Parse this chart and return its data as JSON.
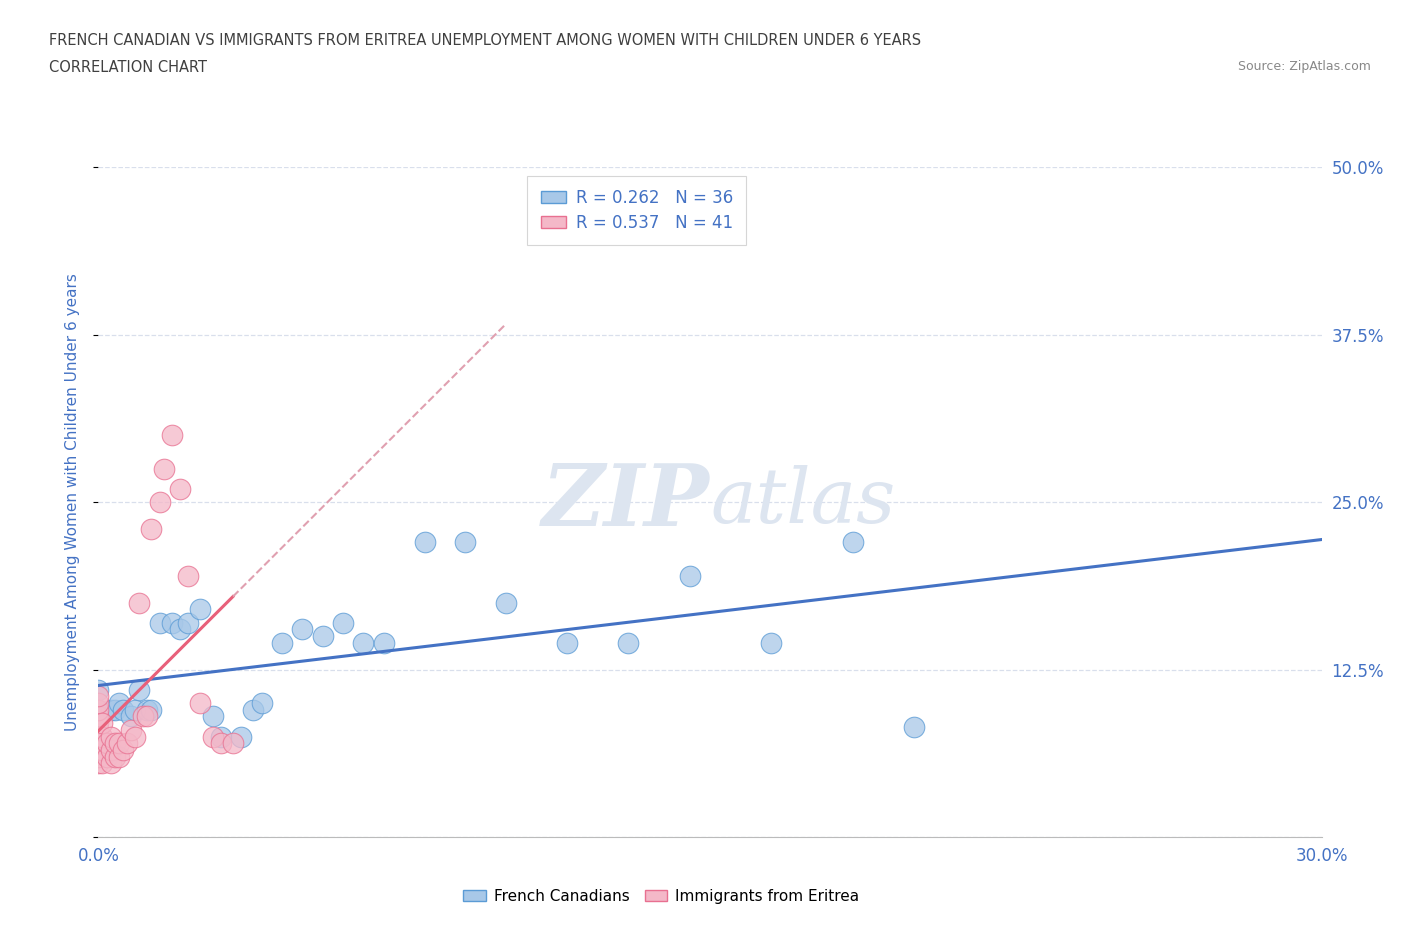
{
  "title_line1": "FRENCH CANADIAN VS IMMIGRANTS FROM ERITREA UNEMPLOYMENT AMONG WOMEN WITH CHILDREN UNDER 6 YEARS",
  "title_line2": "CORRELATION CHART",
  "source": "Source: ZipAtlas.com",
  "ylabel_label": "Unemployment Among Women with Children Under 6 years",
  "watermark_zip": "ZIP",
  "watermark_atlas": "atlas",
  "x_min": 0.0,
  "x_max": 0.3,
  "y_min": 0.0,
  "y_max": 0.5,
  "y_ticks": [
    0.0,
    0.125,
    0.25,
    0.375,
    0.5
  ],
  "y_tick_labels": [
    "",
    "12.5%",
    "25.0%",
    "37.5%",
    "50.0%"
  ],
  "x_tick_labels": [
    "0.0%",
    "30.0%"
  ],
  "legend_r1": "R = 0.262   N = 36",
  "legend_r2": "R = 0.537   N = 41",
  "blue_fill": "#a8c8e8",
  "blue_edge": "#5b9bd5",
  "pink_fill": "#f4b8c8",
  "pink_edge": "#e87090",
  "blue_line": "#4472c4",
  "pink_line": "#e8607a",
  "pink_dash_line": "#e0a0b0",
  "title_color": "#404040",
  "axis_label_color": "#4472c4",
  "grid_color": "#d0d8e8",
  "source_color": "#888888",
  "french_canadians_x": [
    0.0,
    0.0,
    0.003,
    0.004,
    0.005,
    0.006,
    0.008,
    0.009,
    0.01,
    0.012,
    0.013,
    0.015,
    0.018,
    0.02,
    0.022,
    0.025,
    0.028,
    0.03,
    0.035,
    0.038,
    0.04,
    0.045,
    0.05,
    0.055,
    0.06,
    0.065,
    0.07,
    0.08,
    0.09,
    0.1,
    0.115,
    0.13,
    0.145,
    0.165,
    0.185,
    0.2
  ],
  "french_canadians_y": [
    0.11,
    0.095,
    0.095,
    0.095,
    0.1,
    0.095,
    0.09,
    0.095,
    0.11,
    0.095,
    0.095,
    0.16,
    0.16,
    0.155,
    0.16,
    0.17,
    0.09,
    0.075,
    0.075,
    0.095,
    0.1,
    0.145,
    0.155,
    0.15,
    0.16,
    0.145,
    0.145,
    0.22,
    0.22,
    0.175,
    0.145,
    0.145,
    0.195,
    0.145,
    0.22,
    0.082
  ],
  "eritrea_x": [
    0.0,
    0.0,
    0.0,
    0.0,
    0.0,
    0.0,
    0.0,
    0.0,
    0.0,
    0.0,
    0.0,
    0.001,
    0.001,
    0.001,
    0.001,
    0.002,
    0.002,
    0.003,
    0.003,
    0.003,
    0.004,
    0.004,
    0.005,
    0.005,
    0.006,
    0.007,
    0.008,
    0.009,
    0.01,
    0.011,
    0.012,
    0.013,
    0.015,
    0.016,
    0.018,
    0.02,
    0.022,
    0.025,
    0.028,
    0.03,
    0.033
  ],
  "eritrea_y": [
    0.055,
    0.06,
    0.065,
    0.07,
    0.075,
    0.08,
    0.085,
    0.09,
    0.095,
    0.1,
    0.105,
    0.055,
    0.065,
    0.075,
    0.085,
    0.06,
    0.07,
    0.055,
    0.065,
    0.075,
    0.06,
    0.07,
    0.06,
    0.07,
    0.065,
    0.07,
    0.08,
    0.075,
    0.175,
    0.09,
    0.09,
    0.23,
    0.25,
    0.275,
    0.3,
    0.26,
    0.195,
    0.1,
    0.075,
    0.07,
    0.07
  ]
}
